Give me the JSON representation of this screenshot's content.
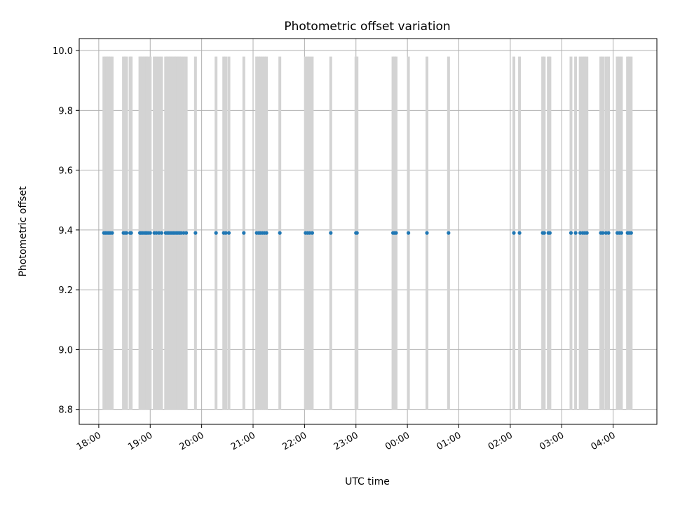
{
  "chart_data": {
    "type": "scatter",
    "title": "Photometric offset variation",
    "xlabel": "UTC time",
    "ylabel": "Photometric offset",
    "x_unit": "hours UTC from 18:00 (continues past midnight)",
    "xlim": [
      -0.38,
      10.85
    ],
    "ylim": [
      8.75,
      10.04
    ],
    "grid": true,
    "x_ticks": [
      {
        "value": 0,
        "label": "18:00"
      },
      {
        "value": 1,
        "label": "19:00"
      },
      {
        "value": 2,
        "label": "20:00"
      },
      {
        "value": 3,
        "label": "21:00"
      },
      {
        "value": 4,
        "label": "22:00"
      },
      {
        "value": 5,
        "label": "23:00"
      },
      {
        "value": 6,
        "label": "00:00"
      },
      {
        "value": 7,
        "label": "01:00"
      },
      {
        "value": 8,
        "label": "02:00"
      },
      {
        "value": 9,
        "label": "03:00"
      },
      {
        "value": 10,
        "label": "04:00"
      }
    ],
    "y_ticks": [
      {
        "value": 8.8,
        "label": "8.8"
      },
      {
        "value": 9.0,
        "label": "9.0"
      },
      {
        "value": 9.2,
        "label": "9.2"
      },
      {
        "value": 9.4,
        "label": "9.4"
      },
      {
        "value": 9.6,
        "label": "9.6"
      },
      {
        "value": 9.8,
        "label": "9.8"
      },
      {
        "value": 10.0,
        "label": "10.0"
      }
    ],
    "vertical_lines": {
      "color": "#d3d3d3",
      "ymin": 8.8,
      "ymax": 9.98,
      "x": [
        0.1,
        0.13,
        0.16,
        0.19,
        0.22,
        0.26,
        0.48,
        0.51,
        0.54,
        0.61,
        0.63,
        0.8,
        0.82,
        0.85,
        0.88,
        0.91,
        0.93,
        0.96,
        1.0,
        1.08,
        1.12,
        1.17,
        1.22,
        1.3,
        1.33,
        1.36,
        1.39,
        1.42,
        1.45,
        1.48,
        1.51,
        1.54,
        1.57,
        1.6,
        1.65,
        1.7,
        1.88,
        2.28,
        2.43,
        2.47,
        2.53,
        2.82,
        3.07,
        3.11,
        3.14,
        3.18,
        3.22,
        3.26,
        3.52,
        4.02,
        4.06,
        4.1,
        4.15,
        4.51,
        5.0,
        5.02,
        5.72,
        5.75,
        5.78,
        6.02,
        6.38,
        6.8,
        8.07,
        8.18,
        8.63,
        8.66,
        8.74,
        8.77,
        9.18,
        9.27,
        9.36,
        9.41,
        9.45,
        9.49,
        9.76,
        9.8,
        9.86,
        9.91,
        10.08,
        10.12,
        10.16,
        10.28,
        10.31,
        10.35
      ]
    },
    "series": [
      {
        "color": "#1f77b4",
        "x": [
          0.1,
          0.13,
          0.16,
          0.19,
          0.22,
          0.26,
          0.48,
          0.51,
          0.54,
          0.61,
          0.63,
          0.8,
          0.82,
          0.85,
          0.88,
          0.91,
          0.93,
          0.96,
          1.0,
          1.08,
          1.12,
          1.17,
          1.22,
          1.3,
          1.33,
          1.36,
          1.39,
          1.42,
          1.45,
          1.48,
          1.51,
          1.54,
          1.57,
          1.6,
          1.65,
          1.7,
          1.88,
          2.28,
          2.43,
          2.47,
          2.53,
          2.82,
          3.07,
          3.11,
          3.14,
          3.18,
          3.22,
          3.26,
          3.52,
          4.02,
          4.06,
          4.1,
          4.15,
          4.51,
          5.0,
          5.02,
          5.72,
          5.75,
          5.78,
          6.02,
          6.38,
          6.8,
          8.07,
          8.18,
          8.63,
          8.66,
          8.74,
          8.77,
          9.18,
          9.27,
          9.36,
          9.41,
          9.45,
          9.49,
          9.76,
          9.8,
          9.86,
          9.91,
          10.08,
          10.12,
          10.16,
          10.28,
          10.31,
          10.35
        ],
        "y_constant": 9.39
      }
    ]
  }
}
